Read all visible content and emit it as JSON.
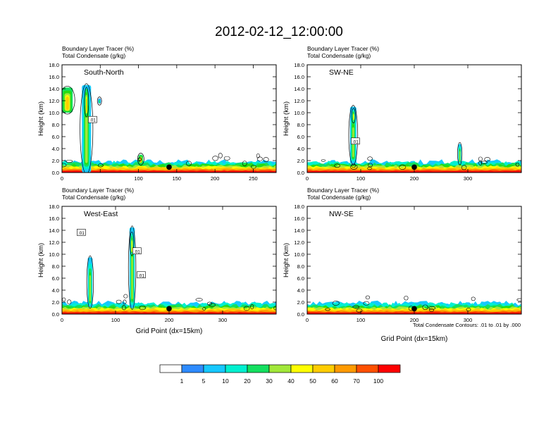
{
  "figure": {
    "title": "2012-02-12_12:00:00",
    "footnote": "Total Condensate Contours: .01 to .01 by .000"
  },
  "chart_data": [
    {
      "type": "heatmap",
      "panel_label": "South-North",
      "subtitle_line1": "Boundary Layer Tracer   (%)",
      "subtitle_line2": "Total Condensate   (g/kg)",
      "ylabel": "Height (km)",
      "xlabel": "",
      "xlim": [
        0,
        280
      ],
      "ylim": [
        0,
        18
      ],
      "xticks": [
        0,
        50,
        100,
        150,
        200,
        250
      ],
      "xtick_labels": [
        "0",
        "",
        "100",
        "150",
        "200",
        "250"
      ],
      "yticks": [
        0,
        2,
        4,
        6,
        8,
        10,
        12,
        14,
        16,
        18
      ],
      "ytick_labels": [
        "0.0",
        "2.0",
        "4.0",
        "6.0",
        "8.0",
        "10.0",
        "12.0",
        "14.0",
        "16.0",
        "18.0"
      ],
      "contour_labels": [
        {
          "x": 40,
          "y": 8.8,
          "text": ".01"
        }
      ],
      "marker_x": 140,
      "columns": [
        {
          "x": 0,
          "w": 14,
          "top": 14.2,
          "bottom": 10.0,
          "peak": 5
        },
        {
          "x": 26,
          "w": 12,
          "top": 14.6,
          "bottom": 0,
          "peak": 3
        },
        {
          "x": 30,
          "w": 4,
          "top": 14.0,
          "bottom": 9.5,
          "peak": 5
        },
        {
          "x": 47,
          "w": 4,
          "top": 12.4,
          "bottom": 11.5,
          "peak": 2
        },
        {
          "x": 100,
          "w": 6,
          "top": 3.0,
          "bottom": 1.5,
          "peak": 5
        }
      ]
    },
    {
      "type": "heatmap",
      "panel_label": "SW-NE",
      "subtitle_line1": "Boundary Layer Tracer   (%)",
      "subtitle_line2": "Total Condensate   (g/kg)",
      "ylabel": "Height (km)",
      "xlabel": "",
      "xlim": [
        0,
        400
      ],
      "ylim": [
        0,
        18
      ],
      "xticks": [
        0,
        100,
        200,
        300
      ],
      "xtick_labels": [
        "0",
        "100",
        "200",
        "300"
      ],
      "yticks": [
        0,
        2,
        4,
        6,
        8,
        10,
        12,
        14,
        16,
        18
      ],
      "ytick_labels": [
        "0.0",
        "2.0",
        "4.0",
        "6.0",
        "8.0",
        "10.0",
        "12.0",
        "14.0",
        "16.0",
        "18.0"
      ],
      "contour_labels": [
        {
          "x": 90,
          "y": 5.2,
          "text": ".01"
        }
      ],
      "marker_x": 200,
      "columns": [
        {
          "x": 80,
          "w": 12,
          "top": 11.0,
          "bottom": 1.5,
          "peak": 3
        },
        {
          "x": 84,
          "w": 5,
          "top": 10.5,
          "bottom": 8.5,
          "peak": 4
        },
        {
          "x": 282,
          "w": 6,
          "top": 4.8,
          "bottom": 1.5,
          "peak": 3
        }
      ]
    },
    {
      "type": "heatmap",
      "panel_label": "West-East",
      "subtitle_line1": "Boundary Layer Tracer   (%)",
      "subtitle_line2": "Total Condensate   (g/kg)",
      "ylabel": "Height (km)",
      "xlabel": "Grid Point (dx=15km)",
      "xlim": [
        0,
        400
      ],
      "ylim": [
        0,
        18
      ],
      "xticks": [
        0,
        100,
        200,
        300
      ],
      "xtick_labels": [
        "0",
        "100",
        "200",
        "300"
      ],
      "yticks": [
        0,
        2,
        4,
        6,
        8,
        10,
        12,
        14,
        16,
        18
      ],
      "ytick_labels": [
        "0.0",
        "2.0",
        "4.0",
        "6.0",
        "8.0",
        "10.0",
        "12.0",
        "14.0",
        "16.0",
        "18.0"
      ],
      "contour_labels": [
        {
          "x": 36,
          "y": 13.6,
          "text": ".01"
        },
        {
          "x": 140,
          "y": 10.5,
          "text": ".01"
        },
        {
          "x": 148,
          "y": 6.5,
          "text": ".01"
        }
      ],
      "marker_x": 200,
      "columns": [
        {
          "x": 48,
          "w": 9,
          "top": 9.5,
          "bottom": 1.2,
          "peak": 3
        },
        {
          "x": 126,
          "w": 10,
          "top": 14.5,
          "bottom": 1.0,
          "peak": 3
        },
        {
          "x": 128,
          "w": 5,
          "top": 13.5,
          "bottom": 10.0,
          "peak": 4
        }
      ]
    },
    {
      "type": "heatmap",
      "panel_label": "NW-SE",
      "subtitle_line1": "Boundary Layer Tracer   (%)",
      "subtitle_line2": "Total Condensate   (g/kg)",
      "ylabel": "Height (km)",
      "xlabel": "Grid Point (dx=15km)",
      "xlim": [
        0,
        400
      ],
      "ylim": [
        0,
        18
      ],
      "xticks": [
        0,
        100,
        200,
        300
      ],
      "xtick_labels": [
        "0",
        "100",
        "200",
        "300"
      ],
      "yticks": [
        0,
        2,
        4,
        6,
        8,
        10,
        12,
        14,
        16,
        18
      ],
      "ytick_labels": [
        "0.0",
        "2.0",
        "4.0",
        "6.0",
        "8.0",
        "10.0",
        "12.0",
        "14.0",
        "16.0",
        "18.0"
      ],
      "contour_labels": [],
      "marker_x": 200,
      "columns": []
    }
  ],
  "colorbar": {
    "labels": [
      "1",
      "5",
      "10",
      "20",
      "30",
      "40",
      "50",
      "60",
      "70",
      "100"
    ],
    "colors": [
      "#ffffff",
      "#2e8bff",
      "#16c8ff",
      "#00f0d0",
      "#14e060",
      "#27dc12",
      "#a2e83a",
      "#ffff00",
      "#ffcd00",
      "#ff9a00",
      "#ff5000",
      "#ff0000"
    ]
  }
}
